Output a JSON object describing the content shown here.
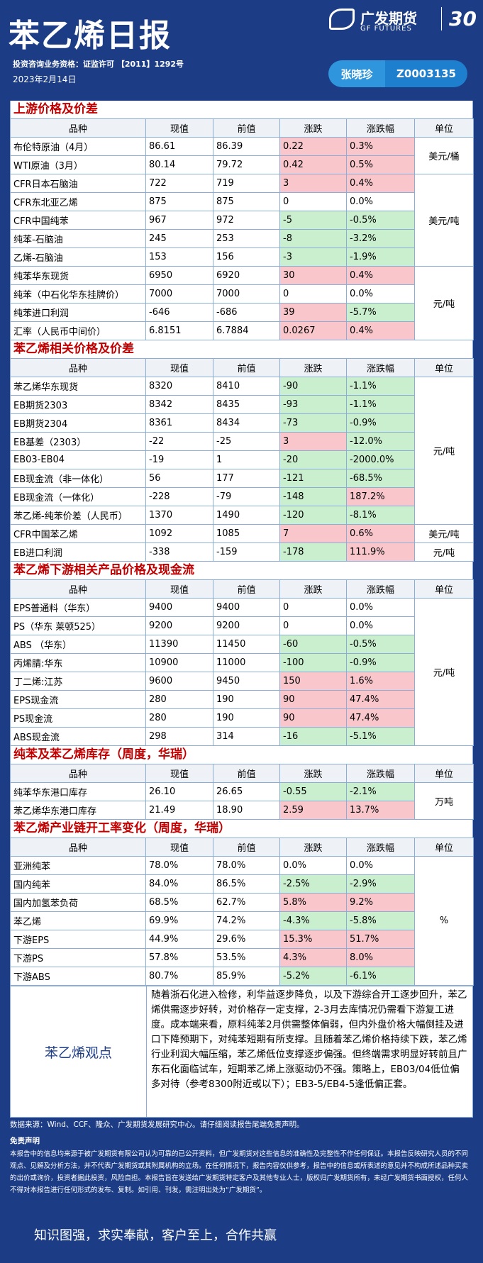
{
  "header": {
    "title": "苯乙烯日报",
    "qualification": "投资咨询业务资格：证监许可 【2011】1292号",
    "date": "2023年2月14日",
    "analyst": "张晓珍",
    "analyst_id": "Z0003135",
    "logo_cn": "广发期货",
    "logo_en": "GF FUTURES",
    "anniversary": "30"
  },
  "sections": [
    {
      "title": "上游价格及价差",
      "columns": [
        "品种",
        "现值",
        "前值",
        "涨跌",
        "涨跌幅",
        "单位"
      ],
      "rows": [
        [
          "布伦特原油（4月）",
          "86.61",
          "86.39",
          "0.22",
          "0.3%"
        ],
        [
          "WTI原油（3月）",
          "80.14",
          "79.72",
          "0.42",
          "0.5%"
        ],
        [
          "CFR日本石脑油",
          "722",
          "719",
          "3",
          "0.4%"
        ],
        [
          "CFR东北亚乙烯",
          "875",
          "875",
          "0",
          "0.0%"
        ],
        [
          "CFR中国纯苯",
          "967",
          "972",
          "-5",
          "-0.5%"
        ],
        [
          "纯苯-石脑油",
          "245",
          "253",
          "-8",
          "-3.2%"
        ],
        [
          "乙烯-石脑油",
          "153",
          "156",
          "-3",
          "-1.9%"
        ],
        [
          "纯苯华东现货",
          "6950",
          "6920",
          "30",
          "0.4%"
        ],
        [
          "纯苯（中石化华东挂牌价）",
          "7000",
          "7000",
          "0",
          "0.0%"
        ],
        [
          "纯苯进口利润",
          "-646",
          "-686",
          "39",
          "-5.7%"
        ],
        [
          "汇率（人民币中间价）",
          "6.8151",
          "6.7884",
          "0.0267",
          "0.4%"
        ]
      ],
      "units": [
        "美元/桶",
        null,
        "美元/吨",
        null,
        null,
        null,
        null,
        "元/吨",
        null,
        null,
        null
      ]
    },
    {
      "title": "苯乙烯相关价格及价差",
      "columns": [
        "品种",
        "现值",
        "前值",
        "涨跌",
        "涨跌幅",
        "单位"
      ],
      "rows": [
        [
          "苯乙烯华东现货",
          "8320",
          "8410",
          "-90",
          "-1.1%"
        ],
        [
          "EB期货2303",
          "8342",
          "8435",
          "-93",
          "-1.1%"
        ],
        [
          "EB期货2304",
          "8361",
          "8434",
          "-73",
          "-0.9%"
        ],
        [
          "EB基差（2303）",
          "-22",
          "-25",
          "3",
          "-12.0%"
        ],
        [
          "EB03-EB04",
          "-19",
          "1",
          "-20",
          "-2000.0%"
        ],
        [
          "EB现金流（非一体化）",
          "56",
          "177",
          "-121",
          "-68.5%"
        ],
        [
          "EB现金流（一体化）",
          "-228",
          "-79",
          "-148",
          "187.2%"
        ],
        [
          "苯乙烯-纯苯价差（人民币）",
          "1370",
          "1490",
          "-120",
          "-8.1%"
        ],
        [
          "CFR中国苯乙烯",
          "1092",
          "1085",
          "7",
          "0.6%"
        ],
        [
          "EB进口利润",
          "-338",
          "-159",
          "-178",
          "111.9%"
        ]
      ],
      "units": [
        "元/吨",
        null,
        null,
        null,
        null,
        null,
        null,
        null,
        "美元/吨",
        "元/吨"
      ]
    },
    {
      "title": "苯乙烯下游相关产品价格及现金流",
      "columns": [
        "品种",
        "现值",
        "前值",
        "涨跌",
        "涨跌幅",
        "单位"
      ],
      "rows": [
        [
          "EPS普通料（华东）",
          "9400",
          "9400",
          "0",
          "0.0%"
        ],
        [
          "PS（华东 莱顿525）",
          "9200",
          "9200",
          "0",
          "0.0%"
        ],
        [
          "ABS （华东）",
          "11390",
          "11450",
          "-60",
          "-0.5%"
        ],
        [
          "丙烯腈:华东",
          "10900",
          "11000",
          "-100",
          "-0.9%"
        ],
        [
          "丁二烯:江苏",
          "9600",
          "9450",
          "150",
          "1.6%"
        ],
        [
          "EPS现金流",
          "280",
          "190",
          "90",
          "47.4%"
        ],
        [
          "PS现金流",
          "280",
          "190",
          "90",
          "47.4%"
        ],
        [
          "ABS现金流",
          "298",
          "314",
          "-16",
          "-5.1%"
        ]
      ],
      "units": [
        "元/吨",
        null,
        null,
        null,
        null,
        null,
        null,
        null
      ]
    },
    {
      "title": "纯苯及苯乙烯库存（周度，华瑞）",
      "columns": [
        "品种",
        "现值",
        "前值",
        "涨跌",
        "涨跌幅",
        "单位"
      ],
      "rows": [
        [
          "纯苯华东港口库存",
          "26.10",
          "26.65",
          "-0.55",
          "-2.1%"
        ],
        [
          "苯乙烯华东港口库存",
          "21.49",
          "18.90",
          "2.59",
          "13.7%"
        ]
      ],
      "units": [
        "万吨",
        null
      ]
    },
    {
      "title": "苯乙烯产业链开工率变化（周度，华瑞）",
      "columns": [
        "品种",
        "现值",
        "前值",
        "涨跌",
        "涨跌幅",
        "单位"
      ],
      "rows": [
        [
          "亚洲纯苯",
          "78.0%",
          "78.0%",
          "0.0%",
          "0.0%"
        ],
        [
          "国内纯苯",
          "84.0%",
          "86.5%",
          "-2.5%",
          "-2.9%"
        ],
        [
          "国内加氢苯负荷",
          "68.5%",
          "62.7%",
          "5.8%",
          "9.2%"
        ],
        [
          "苯乙烯",
          "69.9%",
          "74.2%",
          "-4.3%",
          "-5.8%"
        ],
        [
          "下游EPS",
          "44.9%",
          "29.6%",
          "15.3%",
          "51.7%"
        ],
        [
          "下游PS",
          "57.8%",
          "53.5%",
          "4.3%",
          "8.0%"
        ],
        [
          "下游ABS",
          "80.7%",
          "85.9%",
          "-5.2%",
          "-6.1%"
        ]
      ],
      "units": [
        "%",
        null,
        null,
        null,
        null,
        null,
        null
      ]
    }
  ],
  "viewpoint": {
    "label": "苯乙烯观点",
    "text": "随着浙石化进入检修，利华益逐步降负，以及下游综合开工逐步回升，苯乙烯供需逐步好转，对价格存一定支撑，2-3月去库情况仍需看下游复工进度。成本端来看，原料纯苯2月供需整体偏弱，但内外盘价格大幅倒挂及进口下降预期下，对纯苯短期有所支撑。且随着苯乙烯价格持续下跌，苯乙烯行业利润大幅压缩，苯乙烯低位支撑逐步偏强。但终端需求明显好转前且广东石化面临试车，短期苯乙烯上涨驱动仍不强。策略上，EB03/04低位偏多对待（参考8300附近或以下）；EB3-5/EB4-5逢低偏正套。"
  },
  "footer": {
    "source": "数据来源：Wind、CCF、隆众、广发期货发展研究中心。请仔细阅读报告尾端免责声明。",
    "disclaimer_title": "免责声明",
    "disclaimer": "本报告中的信息均来源于被广发期货有限公司认为可靠的已公开资料，但广发期货对这些信息的准确性及完整性不作任何保证。本报告反映研究人员的不同观点、见解及分析方法，并不代表广发期货或其附属机构的立场。在任何情况下，报告内容仅供参考，报告中的信息或所表述的意见并不构成所述品种买卖的出价或询价，投资者据此投资，风险自担。本报告旨在发送给广发期货特定客户及其他专业人士，版权归广发期货所有，未经广发期货书面授权，任何人不得对本报告进行任何形式的发布、复制。如引用、刊发，需注明出处为“广发期货”。",
    "slogan": "知识图强，求实奉献，客户至上，合作共赢"
  }
}
